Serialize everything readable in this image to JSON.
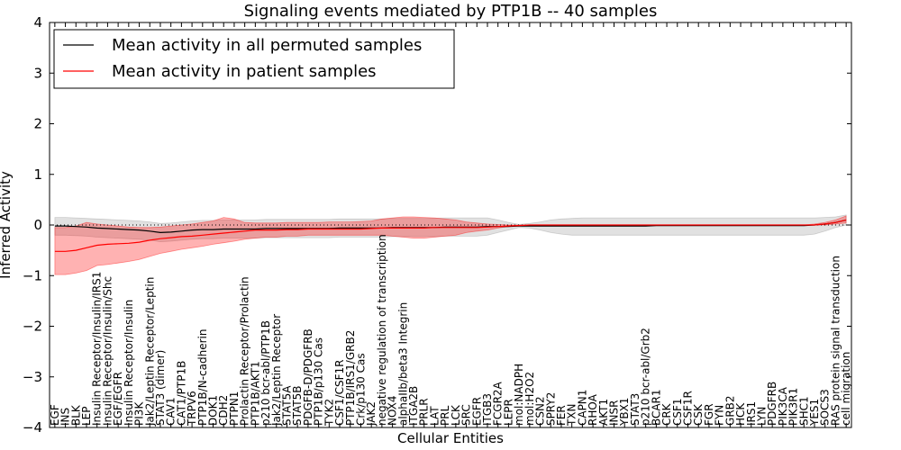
{
  "chart_data": {
    "type": "line",
    "title": "Signaling events mediated by PTP1B -- 40 samples",
    "xlabel": "Cellular Entities",
    "ylabel": "Inferred Activity",
    "ylim": [
      -4,
      4
    ],
    "yticks": [
      "−4",
      "−3",
      "−2",
      "−1",
      "0",
      "1",
      "2",
      "3",
      "4"
    ],
    "legend": {
      "position": "top-left",
      "entries": [
        {
          "name": "Mean activity in all permuted samples",
          "color": "#000000"
        },
        {
          "name": "Mean activity in patient samples",
          "color": "#ff0000"
        }
      ]
    },
    "categories": [
      "EGF",
      "INS",
      "BLK",
      "LEP",
      "Insulin Receptor/Insulin/IRS1",
      "Insulin Receptor/Insulin/Shc",
      "EGF/EGFR",
      "Insulin Receptor/Insulin",
      "PI3K",
      "Jak2/Leptin Receptor/Leptin",
      "STAT3 (dimer)",
      "CAV1",
      "CAT1/PTP1B",
      "TRPV6",
      "PTP1B/N-cadherin",
      "DOK1",
      "CDH2",
      "PTPN1",
      "Prolactin Receptor/Prolactin",
      "PTP1B/AKT1",
      "p210 bcr-abl/PTP1B",
      "Jak2/Leptin Receptor",
      "STAT5A",
      "STAT5B",
      "PDGFB-D/PDGFRB",
      "PTP1B/p130 Cas",
      "TYK2",
      "CSF1/CSF1R",
      "PTP1B/IRS1/GRB2",
      "Crk/p130 Cas",
      "JAK2",
      "negative regulation of transcription",
      "NOX4",
      "alphaIIb/beta3 Integrin",
      "ITGA2B",
      "PRLR",
      "LAT",
      "PRL",
      "LCK",
      "SRC",
      "EGFR",
      "ITGB3",
      "FCGR2A",
      "LEPR",
      "mol:NADPH",
      "mol:H2O2",
      "CSN2",
      "SPRY2",
      "FER",
      "TXN",
      "CAPN1",
      "RHOA",
      "AKT1",
      "INSR",
      "YBX1",
      "STAT3",
      "p210 bcr-abl/Grb2",
      "BCAR1",
      "CRK",
      "CSF1",
      "CSF1R",
      "CSK",
      "FGR",
      "FYN",
      "GRB2",
      "HCK",
      "IRS1",
      "LYN",
      "PDGFRB",
      "PIK3CA",
      "PIK3R1",
      "SHC1",
      "YES1",
      "SOCS3",
      "RAS protein signal transduction",
      "cell migration"
    ],
    "series": [
      {
        "name": "Mean activity in all permuted samples",
        "color": "#000000",
        "values": [
          -0.02,
          -0.02,
          -0.03,
          -0.04,
          -0.06,
          -0.07,
          -0.08,
          -0.09,
          -0.1,
          -0.12,
          -0.15,
          -0.14,
          -0.12,
          -0.1,
          -0.09,
          -0.09,
          -0.08,
          -0.08,
          -0.08,
          -0.08,
          -0.07,
          -0.07,
          -0.07,
          -0.07,
          -0.07,
          -0.07,
          -0.07,
          -0.06,
          -0.06,
          -0.06,
          -0.06,
          -0.06,
          -0.05,
          -0.05,
          -0.05,
          -0.05,
          -0.05,
          -0.04,
          -0.04,
          -0.04,
          -0.04,
          -0.03,
          -0.03,
          -0.03,
          -0.02,
          -0.02,
          -0.02,
          -0.02,
          -0.02,
          -0.02,
          -0.02,
          -0.02,
          -0.02,
          -0.02,
          -0.02,
          -0.02,
          -0.02,
          -0.01,
          -0.01,
          -0.01,
          -0.01,
          -0.01,
          -0.01,
          -0.01,
          -0.01,
          -0.01,
          -0.01,
          -0.01,
          -0.01,
          -0.01,
          -0.01,
          -0.01,
          0.0,
          0.02,
          0.05,
          0.1
        ],
        "lower": [
          -0.2,
          -0.2,
          -0.21,
          -0.22,
          -0.24,
          -0.25,
          -0.26,
          -0.27,
          -0.28,
          -0.3,
          -0.33,
          -0.32,
          -0.3,
          -0.28,
          -0.27,
          -0.27,
          -0.26,
          -0.26,
          -0.26,
          -0.26,
          -0.25,
          -0.25,
          -0.25,
          -0.25,
          -0.25,
          -0.25,
          -0.25,
          -0.24,
          -0.24,
          -0.24,
          -0.24,
          -0.24,
          -0.23,
          -0.23,
          -0.23,
          -0.23,
          -0.23,
          -0.22,
          -0.22,
          -0.22,
          -0.22,
          -0.2,
          -0.15,
          -0.1,
          -0.05,
          -0.06,
          -0.1,
          -0.15,
          -0.18,
          -0.2,
          -0.2,
          -0.2,
          -0.2,
          -0.2,
          -0.2,
          -0.2,
          -0.2,
          -0.2,
          -0.2,
          -0.2,
          -0.2,
          -0.2,
          -0.2,
          -0.2,
          -0.2,
          -0.2,
          -0.2,
          -0.2,
          -0.2,
          -0.2,
          -0.2,
          -0.2,
          -0.18,
          -0.12,
          -0.05,
          0.0
        ],
        "upper": [
          0.15,
          0.15,
          0.14,
          0.13,
          0.12,
          0.11,
          0.1,
          0.09,
          0.08,
          0.06,
          0.03,
          0.04,
          0.06,
          0.08,
          0.09,
          0.09,
          0.1,
          0.1,
          0.1,
          0.1,
          0.11,
          0.11,
          0.11,
          0.11,
          0.11,
          0.11,
          0.11,
          0.12,
          0.12,
          0.12,
          0.12,
          0.12,
          0.13,
          0.13,
          0.13,
          0.13,
          0.13,
          0.14,
          0.14,
          0.14,
          0.14,
          0.14,
          0.1,
          0.05,
          0.01,
          0.03,
          0.06,
          0.1,
          0.12,
          0.13,
          0.14,
          0.14,
          0.14,
          0.14,
          0.14,
          0.14,
          0.14,
          0.14,
          0.14,
          0.14,
          0.14,
          0.14,
          0.14,
          0.14,
          0.14,
          0.14,
          0.14,
          0.14,
          0.14,
          0.14,
          0.14,
          0.14,
          0.14,
          0.15,
          0.16,
          0.2
        ]
      },
      {
        "name": "Mean activity in patient samples",
        "color": "#ff0000",
        "values": [
          -0.52,
          -0.52,
          -0.5,
          -0.45,
          -0.4,
          -0.38,
          -0.37,
          -0.36,
          -0.34,
          -0.3,
          -0.27,
          -0.25,
          -0.23,
          -0.22,
          -0.2,
          -0.18,
          -0.16,
          -0.14,
          -0.12,
          -0.1,
          -0.1,
          -0.1,
          -0.09,
          -0.09,
          -0.08,
          -0.08,
          -0.08,
          -0.08,
          -0.08,
          -0.08,
          -0.07,
          -0.06,
          -0.06,
          -0.06,
          -0.06,
          -0.06,
          -0.05,
          -0.05,
          -0.05,
          -0.05,
          -0.05,
          -0.04,
          -0.03,
          -0.02,
          -0.01,
          0.0,
          0.0,
          0.0,
          0.0,
          0.0,
          0.0,
          0.0,
          0.0,
          0.0,
          0.0,
          0.0,
          0.0,
          0.0,
          0.0,
          0.0,
          0.0,
          0.0,
          0.0,
          0.0,
          0.0,
          0.0,
          0.0,
          0.0,
          0.0,
          0.0,
          0.0,
          0.0,
          0.0,
          0.02,
          0.05,
          0.1
        ],
        "lower": [
          -0.98,
          -0.98,
          -0.95,
          -0.9,
          -0.8,
          -0.78,
          -0.75,
          -0.72,
          -0.68,
          -0.62,
          -0.56,
          -0.52,
          -0.48,
          -0.45,
          -0.42,
          -0.38,
          -0.35,
          -0.32,
          -0.28,
          -0.26,
          -0.24,
          -0.24,
          -0.22,
          -0.22,
          -0.2,
          -0.2,
          -0.2,
          -0.2,
          -0.2,
          -0.2,
          -0.2,
          -0.2,
          -0.22,
          -0.24,
          -0.26,
          -0.26,
          -0.24,
          -0.22,
          -0.2,
          -0.15,
          -0.12,
          -0.1,
          -0.06,
          -0.03,
          -0.01,
          0.0,
          0.0,
          0.0,
          0.0,
          0.0,
          0.0,
          0.0,
          0.0,
          0.0,
          0.0,
          0.0,
          0.0,
          0.0,
          0.0,
          0.0,
          0.0,
          0.0,
          0.0,
          0.0,
          0.0,
          0.0,
          0.0,
          0.0,
          0.0,
          0.0,
          0.0,
          0.0,
          0.0,
          0.0,
          0.02,
          0.04
        ],
        "upper": [
          -0.05,
          -0.05,
          -0.02,
          0.05,
          0.02,
          0.0,
          -0.02,
          -0.04,
          -0.05,
          -0.05,
          -0.04,
          -0.02,
          0.0,
          0.02,
          0.05,
          0.08,
          0.15,
          0.12,
          0.05,
          0.04,
          0.04,
          0.04,
          0.05,
          0.05,
          0.05,
          0.05,
          0.06,
          0.06,
          0.06,
          0.07,
          0.08,
          0.12,
          0.14,
          0.16,
          0.16,
          0.15,
          0.14,
          0.12,
          0.1,
          0.06,
          0.04,
          0.02,
          0.01,
          0.0,
          0.0,
          0.0,
          0.0,
          0.0,
          0.0,
          0.0,
          0.0,
          0.0,
          0.0,
          0.0,
          0.0,
          0.0,
          0.0,
          0.0,
          0.0,
          0.0,
          0.0,
          0.0,
          0.0,
          0.0,
          0.0,
          0.0,
          0.0,
          0.0,
          0.0,
          0.0,
          0.0,
          0.0,
          0.02,
          0.05,
          0.1,
          0.18
        ]
      }
    ]
  }
}
